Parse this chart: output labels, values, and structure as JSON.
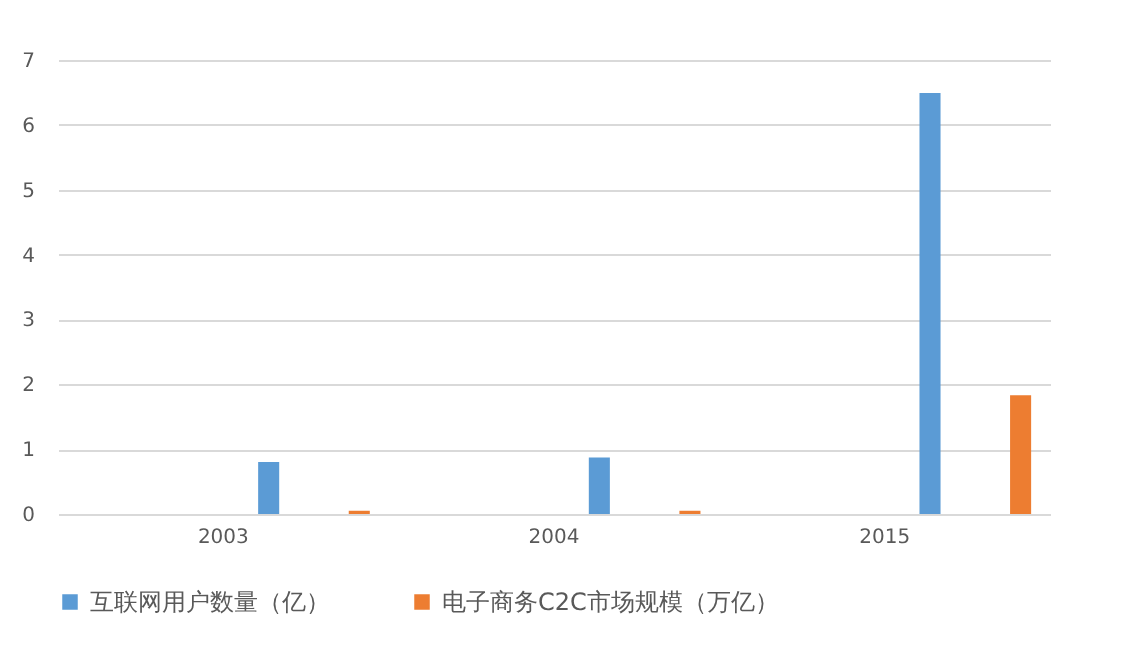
{
  "chart_data": {
    "type": "bar",
    "categories": [
      "2003",
      "2004",
      "2015"
    ],
    "series": [
      {
        "name": "互联网用户数量（亿）",
        "color": "#5b9bd5",
        "values": [
          0.8,
          0.87,
          6.49
        ]
      },
      {
        "name": "电子商务C2C市场规模（万亿）",
        "color": "#ed7d31",
        "values": [
          0.05,
          0.05,
          1.83
        ]
      }
    ],
    "ylim": [
      0,
      7
    ],
    "yticks": [
      0,
      1,
      2,
      3,
      4,
      5,
      6,
      7
    ],
    "grid": "y",
    "legend": "bottom"
  }
}
